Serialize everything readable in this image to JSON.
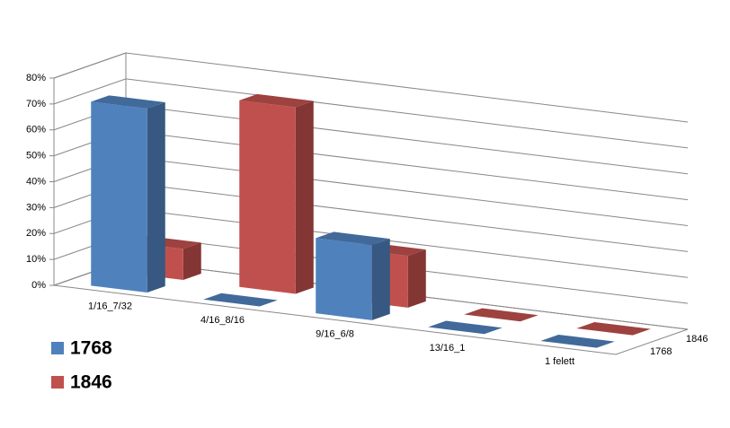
{
  "chart_data": {
    "type": "bar3d",
    "categories": [
      "1/16_7/32",
      "4/16_8/16",
      "9/16_6/8",
      "13/16_1",
      "1 felett"
    ],
    "series": [
      {
        "name": "1768",
        "color": "#4f81bd",
        "values": [
          71,
          0,
          29,
          0,
          0
        ]
      },
      {
        "name": "1846",
        "color": "#c0504d",
        "values": [
          12,
          72,
          20,
          0,
          0
        ]
      }
    ],
    "ylim": [
      0,
      80
    ],
    "yticks": [
      {
        "value": 0,
        "label": "0%"
      },
      {
        "value": 10,
        "label": "10%"
      },
      {
        "value": 20,
        "label": "20%"
      },
      {
        "value": 30,
        "label": "30%"
      },
      {
        "value": 40,
        "label": "40%"
      },
      {
        "value": 50,
        "label": "50%"
      },
      {
        "value": 60,
        "label": "60%"
      },
      {
        "value": 70,
        "label": "70%"
      },
      {
        "value": 80,
        "label": "80%"
      }
    ],
    "grid": true
  }
}
